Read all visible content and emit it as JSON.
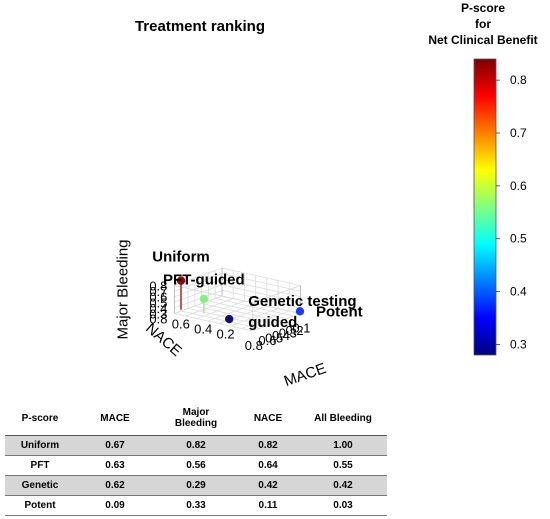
{
  "chart_data": {
    "type": "scatter3d",
    "title": "Treatment ranking",
    "axes": {
      "x": {
        "label": "MACE",
        "ticks": [
          "0.8",
          "0.6",
          "0.5",
          "0.4",
          "0.3",
          "0.2",
          "0.1"
        ],
        "range": [
          0.1,
          0.8
        ]
      },
      "y": {
        "label": "NACE",
        "ticks": [
          "0.2",
          "0.4",
          "0.6",
          "0.8"
        ],
        "range": [
          0.1,
          0.8
        ]
      },
      "z": {
        "label": "Major Bleeding",
        "ticks": [
          "0.3",
          "0.4",
          "0.5",
          "0.6",
          "0.7",
          "0.8"
        ],
        "range": [
          0.3,
          0.8
        ]
      }
    },
    "points": [
      {
        "label": "Uniform",
        "mace": 0.67,
        "nace": 0.82,
        "major_bleeding": 0.82,
        "pscore": 0.82,
        "color": "#8b0a0a"
      },
      {
        "label": "PFT-guided",
        "mace": 0.63,
        "nace": 0.64,
        "major_bleeding": 0.56,
        "pscore": 0.56,
        "color": "#86f086"
      },
      {
        "label": "Potent",
        "mace": 0.09,
        "nace": 0.11,
        "major_bleeding": 0.33,
        "pscore": 0.33,
        "color": "#1a3cf0"
      },
      {
        "label": "Genetic testing\nguided",
        "mace": 0.62,
        "nace": 0.42,
        "major_bleeding": 0.29,
        "pscore": 0.29,
        "color": "#10106e"
      }
    ],
    "colorbar": {
      "title_lines": [
        "P-score",
        "for",
        "Net Clinical Benefit"
      ],
      "ticks": [
        "0.8",
        "0.7",
        "0.6",
        "0.5",
        "0.4",
        "0.3"
      ],
      "range": [
        0.28,
        0.84
      ],
      "colors": [
        "#7f0000",
        "#ff0000",
        "#ff8000",
        "#ffff00",
        "#80ff80",
        "#00ffff",
        "#0080ff",
        "#0000ff",
        "#00007f"
      ]
    },
    "grid": true
  },
  "table": {
    "headers": [
      "P-score",
      "MACE",
      "Major\nBleeding",
      "NACE",
      "All Bleeding"
    ],
    "rows": [
      [
        "Uniform",
        "0.67",
        "0.82",
        "0.82",
        "1.00"
      ],
      [
        "PFT",
        "0.63",
        "0.56",
        "0.64",
        "0.55"
      ],
      [
        "Genetic",
        "0.62",
        "0.29",
        "0.42",
        "0.42"
      ],
      [
        "Potent",
        "0.09",
        "0.33",
        "0.11",
        "0.03"
      ]
    ]
  }
}
